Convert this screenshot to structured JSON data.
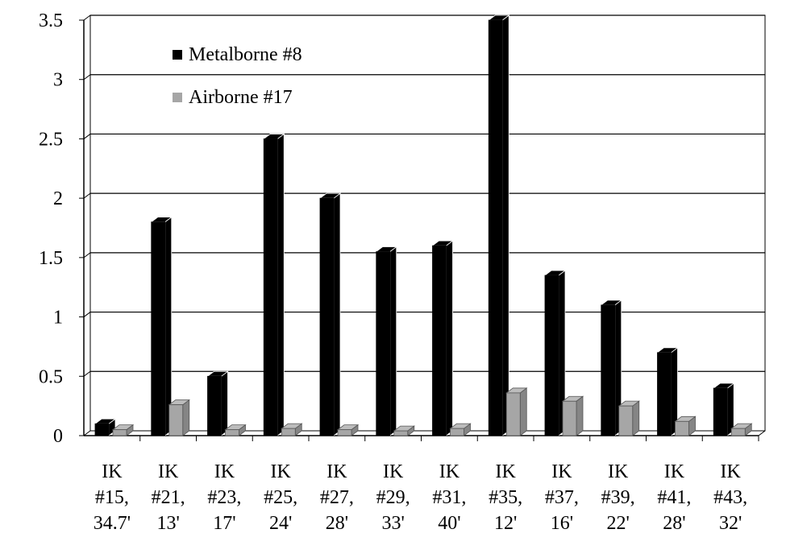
{
  "chart_data": {
    "type": "bar",
    "title": "",
    "xlabel": "",
    "ylabel": "",
    "ylim": [
      0,
      3.5
    ],
    "y_ticks": [
      "0",
      "0.5",
      "1",
      "1.5",
      "2",
      "2.5",
      "3",
      "3.5"
    ],
    "y_tick_values": [
      0,
      0.5,
      1,
      1.5,
      2,
      2.5,
      3,
      3.5
    ],
    "grid": true,
    "legend_position": "top-left",
    "bar_style": "3d",
    "categories": [
      [
        "IK",
        "#15,",
        "34.7'"
      ],
      [
        "IK",
        "#21,",
        "13'"
      ],
      [
        "IK",
        "#23,",
        "17'"
      ],
      [
        "IK",
        "#25,",
        "24'"
      ],
      [
        "IK",
        "#27,",
        "28'"
      ],
      [
        "IK",
        "#29,",
        "33'"
      ],
      [
        "IK",
        "#31,",
        "40'"
      ],
      [
        "IK",
        "#35,",
        "12'"
      ],
      [
        "IK",
        "#37,",
        "16'"
      ],
      [
        "IK",
        "#39,",
        "22'"
      ],
      [
        "IK",
        "#41,",
        "28'"
      ],
      [
        "IK",
        "#43,",
        "32'"
      ]
    ],
    "series": [
      {
        "name": "Metalborne #8",
        "color": "#000000",
        "values": [
          0.1,
          1.8,
          0.5,
          2.5,
          2.0,
          1.55,
          1.6,
          3.5,
          1.35,
          1.1,
          0.7,
          0.4
        ]
      },
      {
        "name": "Airborne #17",
        "color": "#a6a6a6",
        "values": [
          0.05,
          0.26,
          0.05,
          0.06,
          0.05,
          0.04,
          0.06,
          0.36,
          0.29,
          0.25,
          0.12,
          0.06
        ]
      }
    ]
  }
}
